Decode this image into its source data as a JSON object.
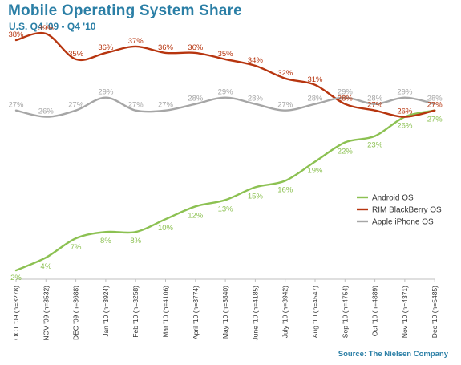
{
  "colors": {
    "android": "#8cc152",
    "rim": "#b7350f",
    "apple": "#a6a6a6",
    "accent": "#2b7fa6"
  },
  "chart_data": {
    "type": "line",
    "title": "Mobile Operating System Share",
    "subtitle": "U.S. Q4 '09 - Q4 '10",
    "source": "Source: The Nielsen Company",
    "categories": [
      "OCT '09 (n=3278)",
      "NOV '09 (n=3532)",
      "DEC '09 (n=3688)",
      "Jan '10 (n=3924)",
      "Feb '10 (n=3258)",
      "Mar '10 (n=4106)",
      "April '10 (n=3774)",
      "May '10 (n=3840)",
      "June '10 (n=4185)",
      "July '10 (n=3942)",
      "Aug '10 (n=4547)",
      "Sep '10 (n=4754)",
      "Oct '10 (n=4889)",
      "Nov '10 (n=4371)",
      "Dec '10 (n=5485)"
    ],
    "series": [
      {
        "name": "Android OS",
        "color": "#8cc152",
        "values": [
          2,
          4,
          7,
          8,
          8,
          10,
          12,
          13,
          15,
          16,
          19,
          22,
          23,
          26,
          27
        ],
        "labels": [
          "2%",
          "4%",
          "7%",
          "8%",
          "8%",
          "10%",
          "12%",
          "13%",
          "15%",
          "16%",
          "19%",
          "22%",
          "23%",
          "26%",
          "27%"
        ]
      },
      {
        "name": "RIM BlackBerry OS",
        "color": "#b7350f",
        "values": [
          38,
          39,
          35,
          36,
          37,
          36,
          36,
          35,
          34,
          32,
          31,
          28,
          27,
          26,
          27
        ],
        "labels": [
          "38%",
          "39%",
          "35%",
          "36%",
          "37%",
          "36%",
          "36%",
          "35%",
          "34%",
          "32%",
          "31%",
          "28%",
          "27%",
          "26%",
          "27%"
        ]
      },
      {
        "name": "Apple iPhone OS",
        "color": "#a6a6a6",
        "values": [
          27,
          26,
          27,
          29,
          27,
          27,
          28,
          29,
          28,
          27,
          28,
          29,
          28,
          29,
          28
        ],
        "labels": [
          "27%",
          "26%",
          "27%",
          "29%",
          "27%",
          "27%",
          "28%",
          "29%",
          "28%",
          "27%",
          "28%",
          "29%",
          "28%",
          "29%",
          "28%"
        ]
      }
    ],
    "ylim": [
      0,
      40
    ],
    "grid": false,
    "legend": "right"
  }
}
